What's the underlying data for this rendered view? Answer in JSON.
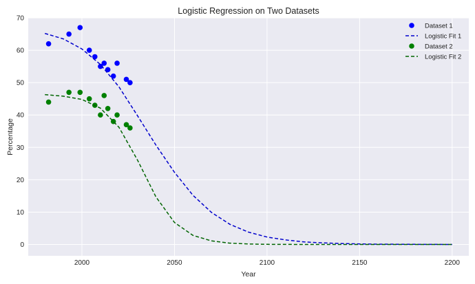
{
  "chart_data": {
    "type": "scatter",
    "title": "Logistic Regression on Two Datasets",
    "xlabel": "Year",
    "ylabel": "Percentage",
    "xlim": [
      1971,
      2209
    ],
    "ylim": [
      -3.5,
      70
    ],
    "xticks": [
      2000,
      2050,
      2100,
      2150,
      2200
    ],
    "yticks": [
      0,
      10,
      20,
      30,
      40,
      50,
      60,
      70
    ],
    "grid": true,
    "legend_position": "top-right",
    "colors": {
      "background": "#eaeaf2",
      "grid": "#ffffff",
      "series1": "#0000ff",
      "fit1": "#0000cc",
      "series2": "#008000",
      "fit2": "#006400"
    },
    "series": [
      {
        "name": "Dataset 1",
        "kind": "scatter",
        "color": "#0000ff",
        "points": [
          [
            1982,
            62
          ],
          [
            1993,
            65
          ],
          [
            1999,
            67
          ],
          [
            2004,
            60
          ],
          [
            2007,
            58
          ],
          [
            2010,
            55
          ],
          [
            2012,
            56
          ],
          [
            2014,
            54
          ],
          [
            2017,
            52
          ],
          [
            2019,
            56
          ],
          [
            2024,
            51
          ],
          [
            2026,
            50
          ]
        ]
      },
      {
        "name": "Logistic Fit 1",
        "kind": "line",
        "dash": true,
        "color": "#0000cc",
        "points": [
          [
            1980,
            65.2
          ],
          [
            1990,
            63.5
          ],
          [
            2000,
            60.4
          ],
          [
            2010,
            55.6
          ],
          [
            2020,
            48.7
          ],
          [
            2030,
            39.8
          ],
          [
            2040,
            30.7
          ],
          [
            2050,
            22.3
          ],
          [
            2060,
            15.2
          ],
          [
            2070,
            9.9
          ],
          [
            2080,
            6.2
          ],
          [
            2090,
            3.8
          ],
          [
            2100,
            2.3
          ],
          [
            2110,
            1.4
          ],
          [
            2120,
            0.8
          ],
          [
            2130,
            0.5
          ],
          [
            2140,
            0.3
          ],
          [
            2150,
            0.18
          ],
          [
            2160,
            0.1
          ],
          [
            2170,
            0.06
          ],
          [
            2180,
            0.04
          ],
          [
            2190,
            0.02
          ],
          [
            2200,
            0.01
          ]
        ]
      },
      {
        "name": "Dataset 2",
        "kind": "scatter",
        "color": "#008000",
        "points": [
          [
            1982,
            44
          ],
          [
            1993,
            47
          ],
          [
            1999,
            47
          ],
          [
            2004,
            45
          ],
          [
            2007,
            43
          ],
          [
            2010,
            40
          ],
          [
            2012,
            46
          ],
          [
            2014,
            42
          ],
          [
            2017,
            38
          ],
          [
            2019,
            40
          ],
          [
            2024,
            37
          ],
          [
            2026,
            36
          ]
        ]
      },
      {
        "name": "Logistic Fit 2",
        "kind": "line",
        "dash": true,
        "color": "#006400",
        "points": [
          [
            1980,
            46.3
          ],
          [
            1990,
            45.8
          ],
          [
            2000,
            44.8
          ],
          [
            2010,
            42.1
          ],
          [
            2020,
            36.2
          ],
          [
            2030,
            26.1
          ],
          [
            2040,
            14.7
          ],
          [
            2050,
            6.8
          ],
          [
            2060,
            2.8
          ],
          [
            2070,
            1.1
          ],
          [
            2080,
            0.4
          ],
          [
            2090,
            0.15
          ],
          [
            2100,
            0.05
          ],
          [
            2110,
            0.02
          ],
          [
            2120,
            0.01
          ],
          [
            2150,
            0.0
          ],
          [
            2200,
            0.0
          ]
        ]
      }
    ]
  }
}
